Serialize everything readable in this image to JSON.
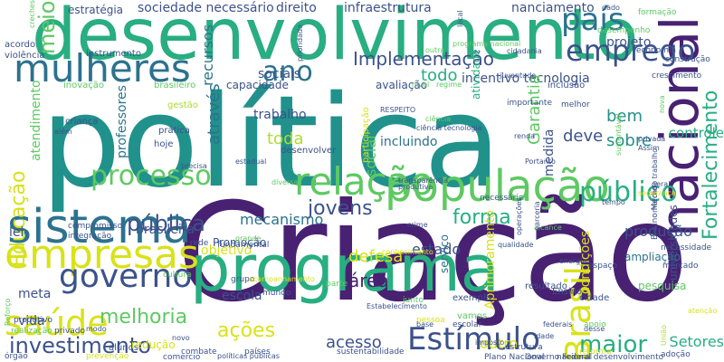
{
  "word_cloud": {
    "palette": {
      "dark_purple": "#482173",
      "indigo": "#3b528b",
      "blue": "#2c728e",
      "teal": "#21918c",
      "green": "#28ae80",
      "light_green": "#5ec962",
      "yellow_green": "#addc30",
      "yellow": "#d8e219"
    },
    "words": [
      {
        "text": "política",
        "color": "#21918c"
      },
      {
        "text": "Criação",
        "color": "#482173"
      },
      {
        "text": "desenvolvimento",
        "color": "#28ae80"
      },
      {
        "text": "programa",
        "color": "#28ae80"
      },
      {
        "text": "sistema",
        "color": "#2c728e"
      },
      {
        "text": "mulheres",
        "color": "#2c728e"
      },
      {
        "text": "população",
        "color": "#5ec962"
      },
      {
        "text": "relação",
        "color": "#5ec962"
      },
      {
        "text": "empresas",
        "color": "#d8e219"
      },
      {
        "text": "saúde",
        "color": "#d8e219"
      },
      {
        "text": "governo",
        "color": "#3b528b"
      },
      {
        "text": "nacional",
        "color": "#482173"
      },
      {
        "text": "país",
        "color": "#2c728e"
      },
      {
        "text": "emprego",
        "color": "#3b528b"
      },
      {
        "text": "Brasil",
        "color": "#d8e219"
      },
      {
        "text": "Estímulo",
        "color": "#3b528b"
      },
      {
        "text": "investimento",
        "color": "#3b528b"
      },
      {
        "text": "processo",
        "color": "#5ec962"
      },
      {
        "text": "público",
        "color": "#28ae80"
      },
      {
        "text": "ano",
        "color": "#2c728e"
      },
      {
        "text": "meio",
        "color": "#5ec962"
      },
      {
        "text": "Educação",
        "color": "#d8e219"
      },
      {
        "text": "pública",
        "color": "#3b528b"
      },
      {
        "text": "forma",
        "color": "#28ae80"
      },
      {
        "text": "jovens",
        "color": "#3b528b"
      },
      {
        "text": "ações",
        "color": "#d8e219"
      },
      {
        "text": "maior",
        "color": "#28ae80"
      },
      {
        "text": "melhoria",
        "color": "#5ec962"
      },
      {
        "text": "Implementação",
        "color": "#3b528b"
      },
      {
        "text": "acesso",
        "color": "#3b528b"
      },
      {
        "text": "sociais",
        "color": "#3b528b"
      },
      {
        "text": "Fortalecimento",
        "color": "#28ae80"
      },
      {
        "text": "bem",
        "color": "#21918c"
      },
      {
        "text": "sobre",
        "color": "#21918c"
      },
      {
        "text": "deve",
        "color": "#3b528b"
      },
      {
        "text": "todo",
        "color": "#28ae80"
      },
      {
        "text": "toda",
        "color": "#addc30"
      },
      {
        "text": "área",
        "color": "#482173"
      },
      {
        "text": "defesa",
        "color": "#d8e219"
      },
      {
        "text": "estado",
        "color": "#3b528b"
      },
      {
        "text": "produção",
        "color": "#3b528b"
      },
      {
        "text": "mecanismo",
        "color": "#2c728e"
      },
      {
        "text": "incentivo tecnologia",
        "color": "#3b528b"
      },
      {
        "text": "através",
        "color": "#2c728e"
      },
      {
        "text": "recursos",
        "color": "#2c728e"
      },
      {
        "text": "social",
        "color": "#5ec962"
      },
      {
        "text": "Garantia",
        "color": "#5ec962"
      },
      {
        "text": "controle",
        "color": "#28ae80"
      },
      {
        "text": "Setores",
        "color": "#28ae80"
      },
      {
        "text": "outro",
        "color": "#d8e219"
      },
      {
        "text": "meta",
        "color": "#3b528b"
      },
      {
        "text": "vida",
        "color": "#3b528b"
      },
      {
        "text": "brasileira",
        "color": "#3b528b"
      },
      {
        "text": "lei",
        "color": "#3b528b"
      },
      {
        "text": "escola",
        "color": "#3b528b"
      },
      {
        "text": "professores",
        "color": "#2c728e"
      },
      {
        "text": "atendimento",
        "color": "#5ec962"
      },
      {
        "text": "trabalho",
        "color": "#3b528b"
      },
      {
        "text": "incluindo",
        "color": "#2c728e"
      },
      {
        "text": "projeto",
        "color": "#3b528b"
      },
      {
        "text": "sociedade necessário",
        "color": "#3b528b"
      },
      {
        "text": "direito",
        "color": "#3b528b"
      },
      {
        "text": "infraestrutura",
        "color": "#3b528b"
      },
      {
        "text": "nanciamento",
        "color": "#3b528b"
      },
      {
        "text": "estratégia",
        "color": "#3b528b"
      },
      {
        "text": "objetivo",
        "color": "#d8e219"
      },
      {
        "text": "Promoção",
        "color": "#3b528b"
      },
      {
        "text": "Aprimoramento",
        "color": "#d8e219"
      },
      {
        "text": "condições",
        "color": "#d8e219"
      },
      {
        "text": "pesquisa",
        "color": "#5ec962"
      },
      {
        "text": "universidades",
        "color": "#3b528b"
      },
      {
        "text": "ampliação",
        "color": "#2c728e"
      },
      {
        "text": "atividade",
        "color": "#28ae80"
      },
      {
        "text": "medida",
        "color": "#3b528b"
      },
      {
        "text": "serviço",
        "color": "#2c728e"
      },
      {
        "text": "participação",
        "color": "#d8e219"
      },
      {
        "text": "avaliação",
        "color": "#3b528b"
      },
      {
        "text": "capacidade",
        "color": "#3b528b"
      },
      {
        "text": "gestão",
        "color": "#addc30"
      },
      {
        "text": "inovação",
        "color": "#5ec962"
      },
      {
        "text": "brasileiro",
        "color": "#5ec962"
      },
      {
        "text": "instrumento",
        "color": "#3b528b"
      },
      {
        "text": "acordo",
        "color": "#3b528b"
      },
      {
        "text": "violência",
        "color": "#3b528b"
      },
      {
        "text": "prática",
        "color": "#3b528b"
      },
      {
        "text": "criança",
        "color": "#3b528b"
      },
      {
        "text": "hoje",
        "color": "#3b528b"
      },
      {
        "text": "alunos",
        "color": "#3b528b"
      },
      {
        "text": "redução",
        "color": "#d8e219"
      },
      {
        "text": "modo",
        "color": "#3b528b"
      },
      {
        "text": "privado",
        "color": "#3b528b"
      },
      {
        "text": "produtivo",
        "color": "#3b528b"
      },
      {
        "text": "realização",
        "color": "#5ec962"
      },
      {
        "text": "compromisso",
        "color": "#3b528b"
      },
      {
        "text": "integração",
        "color": "#3b528b"
      },
      {
        "text": "cultura",
        "color": "#5ec962"
      },
      {
        "text": "rede",
        "color": "#3b528b"
      },
      {
        "text": "fundamental",
        "color": "#3b528b"
      },
      {
        "text": "desenvolver",
        "color": "#3b528b"
      },
      {
        "text": "crime",
        "color": "#3b528b"
      },
      {
        "text": "vamos",
        "color": "#5ec962"
      },
      {
        "text": "pessoa",
        "color": "#d8e219"
      },
      {
        "text": "escolar",
        "color": "#3b528b"
      },
      {
        "text": "exemplo",
        "color": "#3b528b"
      },
      {
        "text": "junto",
        "color": "#5ec962"
      },
      {
        "text": "parte",
        "color": "#5ec962"
      },
      {
        "text": "mundo",
        "color": "#3b528b"
      },
      {
        "text": "grupo",
        "color": "#3b528b"
      },
      {
        "text": "cidade",
        "color": "#3b528b"
      },
      {
        "text": "Ensino",
        "color": "#3b528b"
      },
      {
        "text": "resultado",
        "color": "#3b528b"
      },
      {
        "text": "espaço",
        "color": "#3b528b"
      },
      {
        "text": "necessidade",
        "color": "#3b528b"
      },
      {
        "text": "mercado",
        "color": "#3b528b"
      },
      {
        "text": "apoio",
        "color": "#5ec962"
      },
      {
        "text": "desse",
        "color": "#3b528b"
      },
      {
        "text": "inclusão",
        "color": "#3b528b"
      },
      {
        "text": "melhor",
        "color": "#3b528b"
      },
      {
        "text": "importante",
        "color": "#3b528b"
      },
      {
        "text": "desempenho",
        "color": "#5ec962"
      },
      {
        "text": "formação",
        "color": "#5ec962"
      },
      {
        "text": "economia",
        "color": "#3b528b"
      },
      {
        "text": "construção",
        "color": "#3b528b"
      },
      {
        "text": "crescimento",
        "color": "#3b528b"
      },
      {
        "text": "novo",
        "color": "#3b528b"
      },
      {
        "text": "sustentabilidade",
        "color": "#3b528b"
      },
      {
        "text": "países",
        "color": "#3b528b"
      },
      {
        "text": "combate",
        "color": "#3b528b"
      },
      {
        "text": "estrutura",
        "color": "#3b528b"
      },
      {
        "text": "reforma",
        "color": "#d8e219"
      },
      {
        "text": "adoção",
        "color": "#3b528b"
      },
      {
        "text": "acompanhamento",
        "color": "#d8e219"
      },
      {
        "text": "Estabelecimento",
        "color": "#3b528b"
      },
      {
        "text": "necessária",
        "color": "#3b528b"
      },
      {
        "text": "alcance",
        "color": "#5ec962"
      },
      {
        "text": "juventude",
        "color": "#3b528b"
      },
      {
        "text": "outra",
        "color": "#5ec962"
      },
      {
        "text": "cidadania",
        "color": "#3b528b"
      },
      {
        "text": "atenção",
        "color": "#d8e219"
      },
      {
        "text": "ciência tecnologia",
        "color": "#3b528b"
      },
      {
        "text": "transparência",
        "color": "#3b528b"
      },
      {
        "text": "produtiva",
        "color": "#3b528b"
      },
      {
        "text": "oferta",
        "color": "#5ec962"
      },
      {
        "text": "diversas",
        "color": "#5ec962"
      },
      {
        "text": "energia",
        "color": "#3b528b"
      },
      {
        "text": "União",
        "color": "#addc30"
      },
      {
        "text": "base",
        "color": "#3b528b"
      },
      {
        "text": "tempo",
        "color": "#3b528b"
      },
      {
        "text": "RESPEITO",
        "color": "#3b528b"
      },
      {
        "text": "precisa",
        "color": "#3b528b"
      },
      {
        "text": "Reforço",
        "color": "#5ec962"
      },
      {
        "text": "prevenção",
        "color": "#d8e219"
      },
      {
        "text": "órgão",
        "color": "#3b528b"
      },
      {
        "text": "comercio",
        "color": "#3b528b"
      },
      {
        "text": "Plano Nacional",
        "color": "#3b528b"
      },
      {
        "text": "Governo Federal",
        "color": "#3b528b"
      },
      {
        "text": "nacional desenvolvimento",
        "color": "#3b528b"
      },
      {
        "text": "Ensino Médio",
        "color": "#3b528b"
      },
      {
        "text": "mercado trabalho",
        "color": "#3b528b"
      },
      {
        "text": "políticas públicas",
        "color": "#3b528b"
      },
      {
        "text": "nível",
        "color": "#5ec962"
      },
      {
        "text": "regime",
        "color": "#5ec962"
      },
      {
        "text": "imposto",
        "color": "#3b528b"
      },
      {
        "text": "idade",
        "color": "#3b528b"
      },
      {
        "text": "federais",
        "color": "#3b528b"
      },
      {
        "text": "renda",
        "color": "#3b528b"
      },
      {
        "text": "ciência",
        "color": "#5ec962"
      },
      {
        "text": "além",
        "color": "#3b528b"
      },
      {
        "text": "creches",
        "color": "#5ec962"
      },
      {
        "text": "nova",
        "color": "#5ec962"
      },
      {
        "text": "grande",
        "color": "#5ec962"
      },
      {
        "text": "qualidade",
        "color": "#3b528b"
      },
      {
        "text": "estadual",
        "color": "#3b528b"
      },
      {
        "text": "privada",
        "color": "#3b528b"
      },
      {
        "text": "sustentável",
        "color": "#5ec962"
      },
      {
        "text": "parceria",
        "color": "#3b528b"
      },
      {
        "text": "conhecimento",
        "color": "#d8e219"
      },
      {
        "text": "dado",
        "color": "#3b528b"
      },
      {
        "text": "Portanto",
        "color": "#3b528b"
      },
      {
        "text": "operações",
        "color": "#3b528b"
      },
      {
        "text": "segurança",
        "color": "#d8e219"
      },
      {
        "text": "prioridade",
        "color": "#3b528b"
      },
      {
        "text": "programa nacional",
        "color": "#5ec962"
      },
      {
        "text": "local",
        "color": "#3b528b"
      },
      {
        "text": "Assim",
        "color": "#3b528b"
      },
      {
        "text": "geral",
        "color": "#3b528b"
      }
    ]
  }
}
